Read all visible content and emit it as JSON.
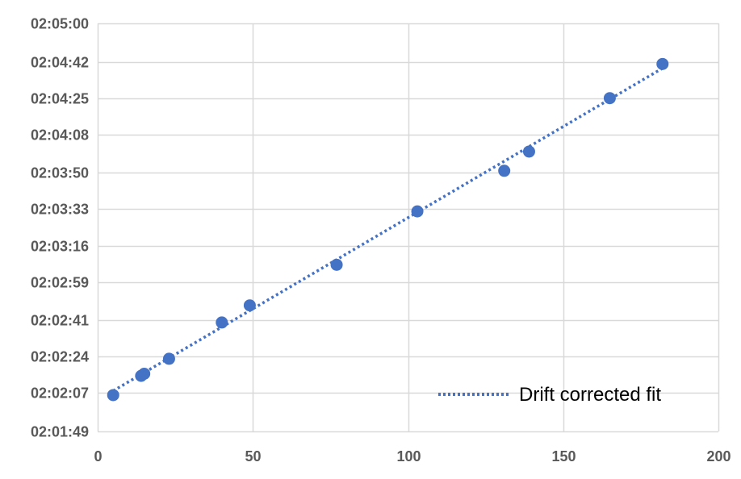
{
  "chart_data": {
    "type": "scatter",
    "title": "",
    "xlabel": "",
    "ylabel": "",
    "xlim": [
      0,
      200
    ],
    "x_ticks": [
      0,
      50,
      100,
      150,
      200
    ],
    "ylim": [
      "02:01:49",
      "02:05:00"
    ],
    "y_ticks": [
      "02:01:49",
      "02:02:07",
      "02:02:24",
      "02:02:41",
      "02:02:59",
      "02:03:16",
      "02:03:33",
      "02:03:50",
      "02:04:08",
      "02:04:25",
      "02:04:42",
      "02:05:00"
    ],
    "grid": true,
    "series": [
      {
        "x": [
          5,
          14,
          15,
          23,
          40,
          49,
          77,
          103,
          131,
          139,
          165,
          182
        ],
        "y": [
          "02:02:06",
          "02:02:15",
          "02:02:16",
          "02:02:23",
          "02:02:40",
          "02:02:48",
          "02:03:07",
          "02:03:32",
          "02:03:51",
          "02:04:00",
          "02:04:25",
          "02:04:41"
        ],
        "color": "#4472c4"
      }
    ],
    "fit_line": {
      "name": "Drift corrected fit",
      "x": [
        5,
        182
      ],
      "y": [
        "02:02:08",
        "02:04:39"
      ],
      "color": "#4472c4",
      "style": "dotted"
    },
    "legend": {
      "position": "bottom-right",
      "entries": [
        "Drift corrected fit"
      ]
    }
  }
}
